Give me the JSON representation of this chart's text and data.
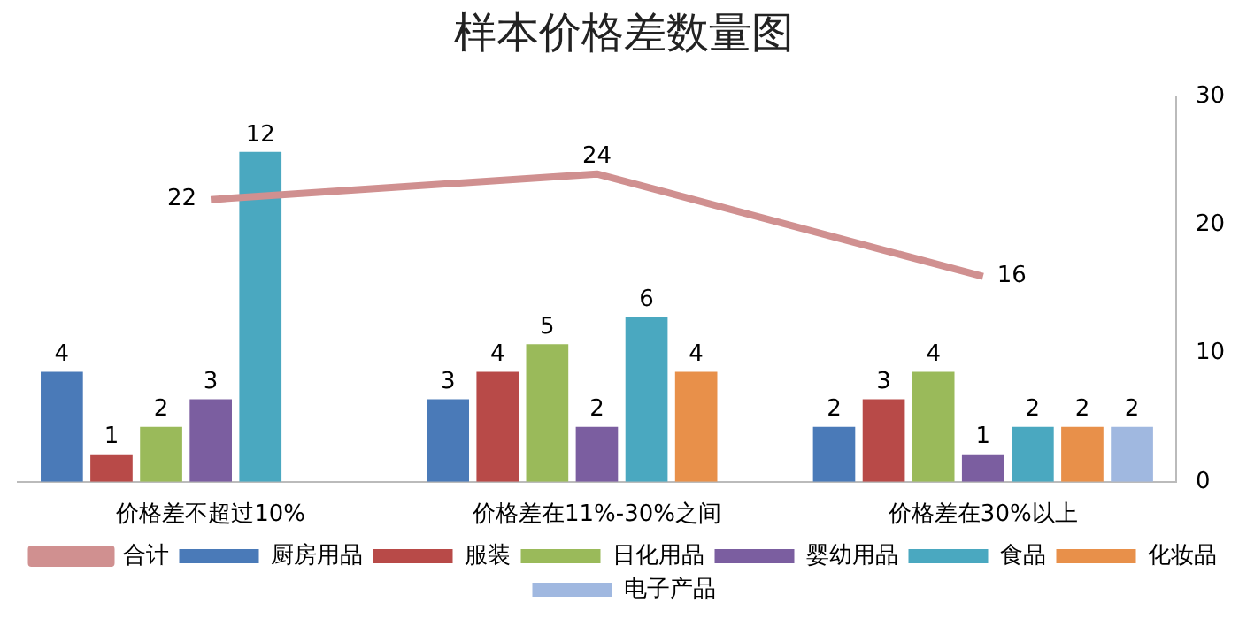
{
  "chart_data": {
    "type": "bar",
    "title": "样本价格差数量图",
    "categories": [
      "价格差不超过10%",
      "价格差在11%-30%之间",
      "价格差在30%以上"
    ],
    "series": [
      {
        "name": "厨房用品",
        "color": "#4a7ab8",
        "values": [
          4,
          3,
          2
        ]
      },
      {
        "name": "服装",
        "color": "#b84a48",
        "values": [
          1,
          4,
          3
        ]
      },
      {
        "name": "日化用品",
        "color": "#9aba5a",
        "values": [
          2,
          5,
          4
        ]
      },
      {
        "name": "婴幼用品",
        "color": "#7b5ea0",
        "values": [
          3,
          2,
          1
        ]
      },
      {
        "name": "食品",
        "color": "#4aa8c0",
        "values": [
          12,
          6,
          2
        ]
      },
      {
        "name": "化妆品",
        "color": "#e8904a",
        "values": [
          null,
          4,
          2
        ]
      },
      {
        "name": "电子产品",
        "color": "#a0b8e0",
        "values": [
          null,
          null,
          2
        ]
      },
      {
        "name": "合计",
        "color": "#d09090",
        "type": "line",
        "axis": "y2",
        "values": [
          22,
          24,
          16
        ]
      }
    ],
    "y2lim": [
      0,
      30
    ],
    "y2ticks": [
      0,
      10,
      20,
      30
    ],
    "data_labels": true,
    "legend": "bottom",
    "grid": false
  }
}
